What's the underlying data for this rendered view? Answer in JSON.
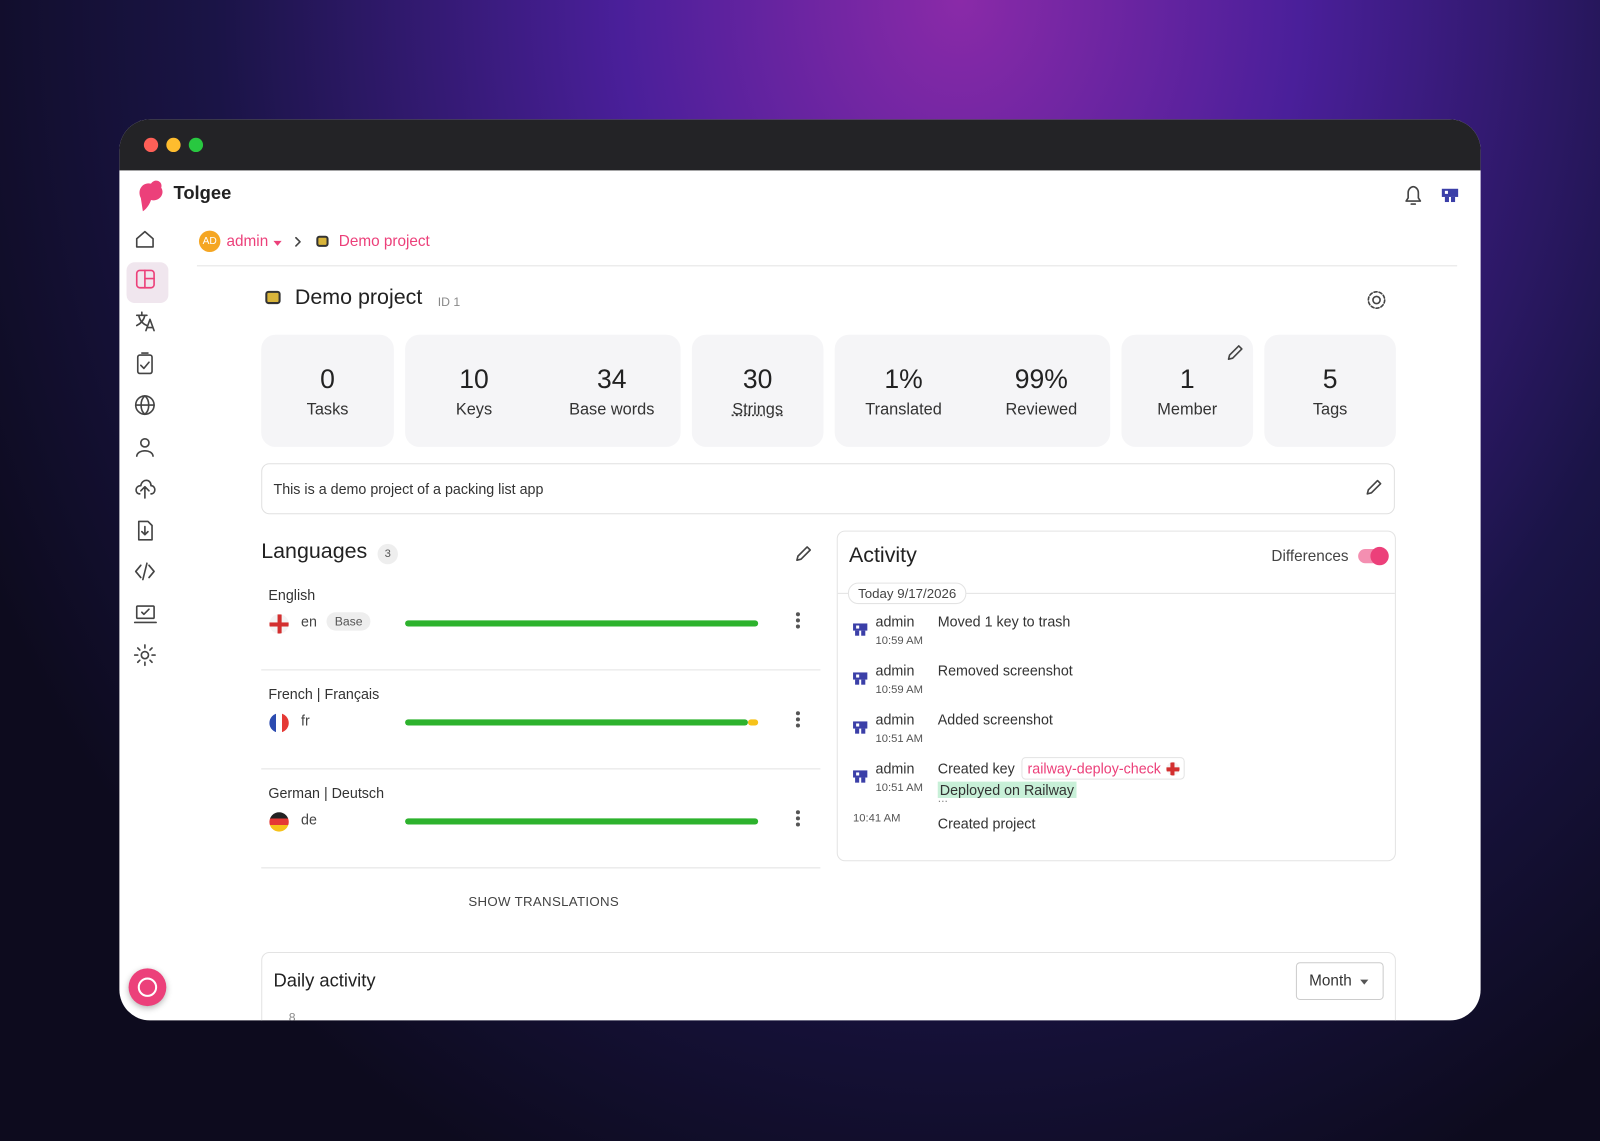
{
  "app": {
    "name": "Tolgee"
  },
  "breadcrumb": {
    "org_initials": "AD",
    "org": "admin",
    "project": "Demo project"
  },
  "project": {
    "title": "Demo project",
    "id": "ID 1",
    "description": "This is a demo project of a packing list app"
  },
  "stat_cards": [
    [
      {
        "value": 0,
        "label": "Tasks"
      }
    ],
    [
      {
        "value": 10,
        "label": "Keys"
      },
      {
        "value": 34,
        "label": "Base words"
      }
    ],
    [
      {
        "value": 30,
        "label": "Strings"
      }
    ],
    [
      {
        "value": "1%",
        "label": "Translated"
      },
      {
        "value": "99%",
        "label": "Reviewed"
      }
    ],
    [
      {
        "value": 1,
        "label": "Member"
      }
    ],
    [
      {
        "value": 5,
        "label": "Tags"
      }
    ]
  ],
  "languages": {
    "title": "Languages",
    "count": 3,
    "show_button": "SHOW TRANSLATIONS",
    "items": [
      {
        "name": "English",
        "code": "en",
        "badge": "Base",
        "progress": [
          100
        ]
      },
      {
        "name": "French | Français",
        "code": "fr",
        "progress": [
          97,
          3
        ]
      },
      {
        "name": "German | Deutsch",
        "code": "de",
        "progress": [
          100
        ]
      }
    ]
  },
  "activity": {
    "title": "Activity",
    "toggle_label": "Differences",
    "date": "Today 9/17/2026",
    "entries": [
      {
        "user": "admin",
        "time": "10:59 AM",
        "action": "Moved 1 key to trash"
      },
      {
        "user": "admin",
        "time": "10:59 AM",
        "action": "Removed screenshot"
      },
      {
        "user": "admin",
        "time": "10:51 AM",
        "action": "Added screenshot"
      },
      {
        "user": "admin",
        "time": "10:51 AM",
        "action": "Created key",
        "key": "railway-deploy-check",
        "value": "Deployed on Railway",
        "more": "..."
      },
      {
        "time": "10:41 AM",
        "action": "Created project"
      }
    ]
  },
  "daily_activity": {
    "title": "Daily activity",
    "period": "Month",
    "axis_tick": 8
  }
}
